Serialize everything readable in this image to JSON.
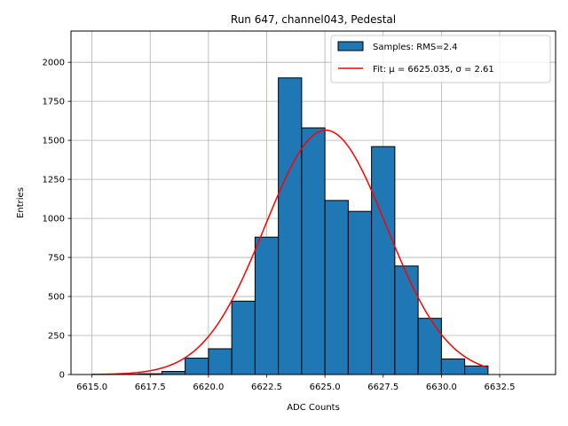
{
  "chart_data": {
    "type": "bar",
    "title": "Run 647, channel043, Pedestal",
    "xlabel": "ADC Counts",
    "ylabel": "Entries",
    "xlim": [
      6614.1,
      6634.9
    ],
    "ylim": [
      0,
      2200
    ],
    "xticks": [
      6615.0,
      6617.5,
      6620.0,
      6622.5,
      6625.0,
      6627.5,
      6630.0,
      6632.5
    ],
    "xtick_labels": [
      "6615.0",
      "6617.5",
      "6620.0",
      "6622.5",
      "6625.0",
      "6627.5",
      "6630.0",
      "6632.5"
    ],
    "yticks": [
      0,
      250,
      500,
      750,
      1000,
      1250,
      1500,
      1750,
      2000
    ],
    "ytick_labels": [
      "0",
      "250",
      "500",
      "750",
      "1000",
      "1250",
      "1500",
      "1750",
      "2000"
    ],
    "grid": true,
    "legend_position": "top-right",
    "histogram": {
      "name": "Samples: RMS=2.4",
      "color": "#1f77b4",
      "edge_color": "#000000",
      "bin_edges": [
        6615,
        6616,
        6617,
        6618,
        6619,
        6620,
        6621,
        6622,
        6623,
        6624,
        6625,
        6626,
        6627,
        6628,
        6629,
        6630,
        6631,
        6632
      ],
      "counts": [
        1,
        2,
        5,
        20,
        105,
        165,
        470,
        880,
        1900,
        1580,
        1115,
        1045,
        1460,
        695,
        360,
        100,
        55
      ]
    },
    "fit": {
      "name": "Fit: μ = 6625.035, σ = 2.61",
      "color": "#ff0000",
      "mu": 6625.035,
      "sigma": 2.61,
      "amplitude": 1565,
      "x_range": [
        6615,
        6632
      ]
    }
  }
}
